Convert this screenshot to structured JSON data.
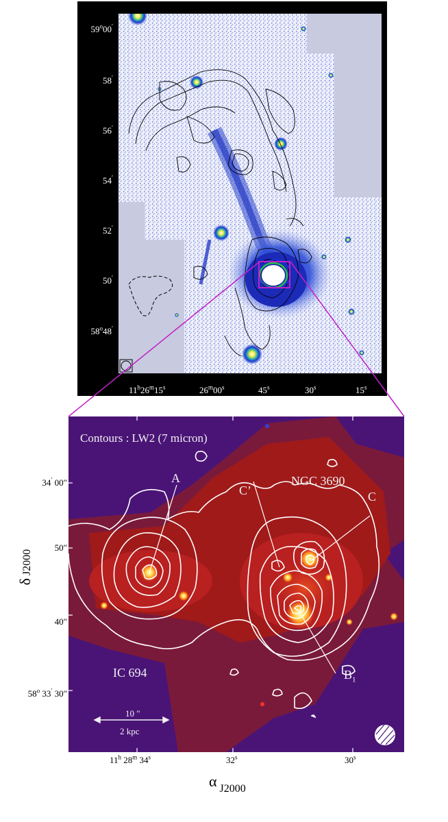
{
  "top_panel": {
    "y_ticks": [
      {
        "prefix": "59",
        "deg": "o",
        "rest": "00",
        "min": "′"
      },
      {
        "prefix": "",
        "deg": "",
        "rest": "58",
        "min": "′"
      },
      {
        "prefix": "",
        "deg": "",
        "rest": "56",
        "min": "′"
      },
      {
        "prefix": "",
        "deg": "",
        "rest": "54",
        "min": "′"
      },
      {
        "prefix": "",
        "deg": "",
        "rest": "52",
        "min": "′"
      },
      {
        "prefix": "",
        "deg": "",
        "rest": "50",
        "min": "′"
      },
      {
        "prefix": "58",
        "deg": "o",
        "rest": "48",
        "min": "′"
      }
    ],
    "x_ticks": [
      {
        "a": "11",
        "ah": "h",
        "b": "26",
        "bm": "m",
        "c": "15",
        "cs": "s"
      },
      {
        "a": "",
        "ah": "",
        "b": "26",
        "bm": "m",
        "c": "00",
        "cs": "s"
      },
      {
        "a": "",
        "ah": "",
        "b": "",
        "bm": "",
        "c": "45",
        "cs": "s"
      },
      {
        "a": "",
        "ah": "",
        "b": "",
        "bm": "",
        "c": "30",
        "cs": "s"
      },
      {
        "a": "",
        "ah": "",
        "b": "",
        "bm": "",
        "c": "15",
        "cs": "s"
      }
    ],
    "colors": {
      "frame": "#000000",
      "sky": "#ffffff",
      "emission": "#1a2fd0",
      "mask": "#c8cadf",
      "contour": "#000000"
    }
  },
  "bottom_panel": {
    "contours_label": "Contours : LW2 (7 micron)",
    "labels": {
      "A": "A",
      "C_prime": "C’",
      "C": "C",
      "ngc": "NGC 3690",
      "ic": "IC 694",
      "B": "B",
      "B_sub": "1"
    },
    "scale_bar": {
      "top": "10 \"",
      "bottom": "2 kpc"
    },
    "y_ticks": [
      {
        "deg": "",
        "deg_sup": "",
        "main": "34",
        "unit": "′",
        "sec": "00",
        "sec_unit": "″"
      },
      {
        "deg": "",
        "deg_sup": "",
        "main": "",
        "unit": "",
        "sec": "50",
        "sec_unit": "″"
      },
      {
        "deg": "",
        "deg_sup": "",
        "main": "",
        "unit": "",
        "sec": "40",
        "sec_unit": "″"
      },
      {
        "deg": "58",
        "deg_sup": "o",
        "main": "33",
        "unit": "′",
        "sec": "30",
        "sec_unit": "″"
      }
    ],
    "x_ticks": [
      {
        "h": "11",
        "hs": "h",
        "m": "28",
        "ms": "m",
        "s": "34",
        "ss": "s"
      },
      {
        "h": "",
        "hs": "",
        "m": "",
        "ms": "",
        "s": "32",
        "ss": "s"
      },
      {
        "h": "",
        "hs": "",
        "m": "",
        "ms": "",
        "s": "30",
        "ss": "s"
      }
    ],
    "y_axis_title": {
      "main": "δ",
      "sub": "J2000"
    },
    "x_axis_title": {
      "main": "α",
      "sub": "J2000"
    },
    "colors": {
      "background": "#4a1477",
      "emission": "#a01a1a",
      "hot": "#ffe25a",
      "contour": "#ffffff",
      "link": "#c020c8"
    }
  }
}
